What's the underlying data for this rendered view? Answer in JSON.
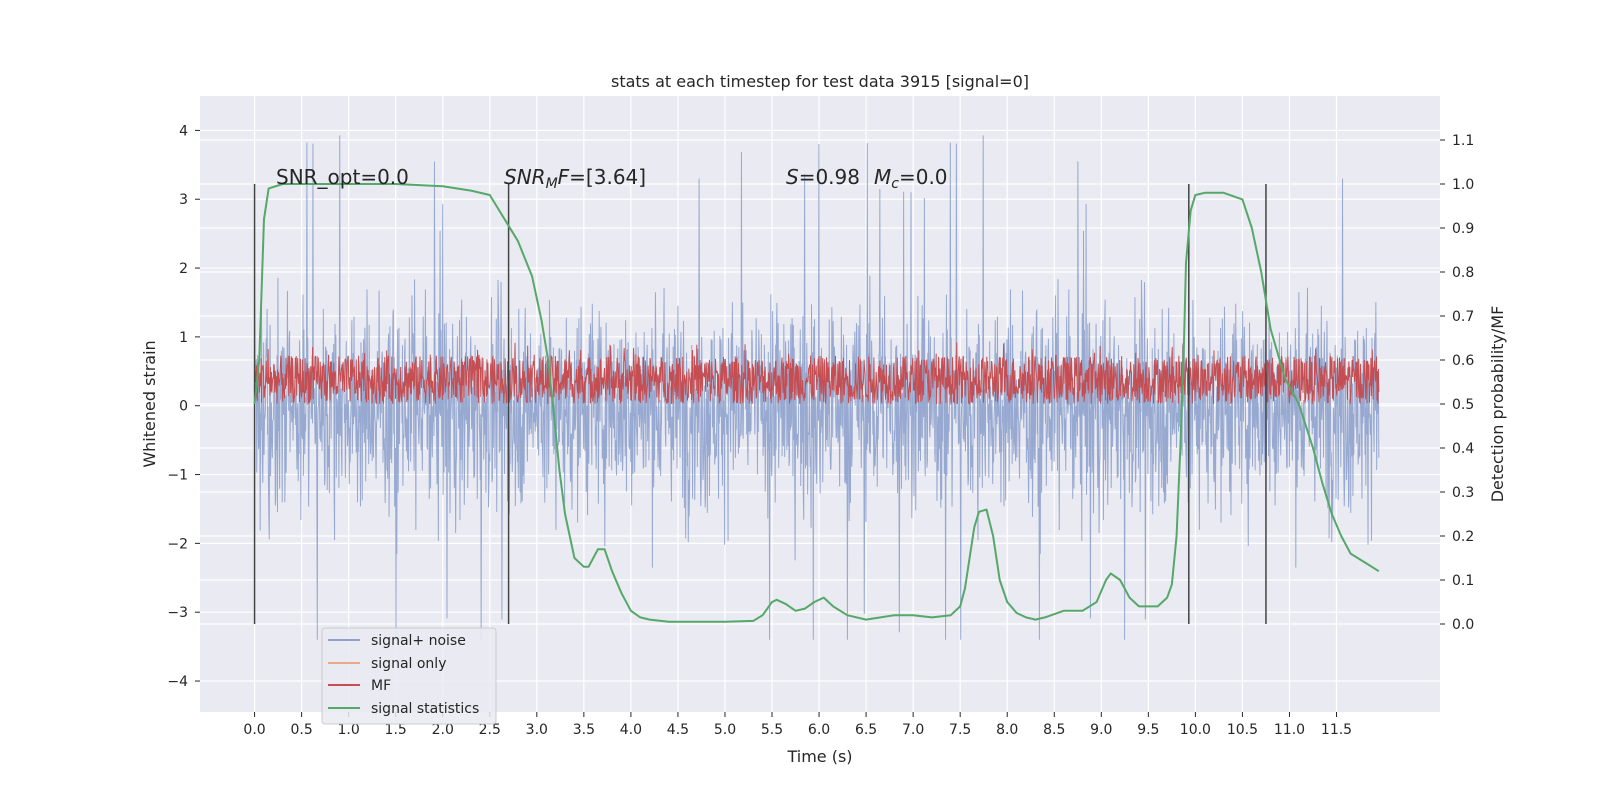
{
  "chart_data": {
    "type": "line",
    "title": "stats at each timestep for test data 3915 [signal=0]",
    "xlabel": "Time (s)",
    "ylabel_left": "Whitened strain",
    "ylabel_right": "Detection probability/MF",
    "xlim": [
      -0.58,
      12.6
    ],
    "ylim_left": [
      -4.45,
      4.5
    ],
    "ylim_right": [
      -0.2,
      1.2
    ],
    "x_ticks": [
      "0.0",
      "0.5",
      "1.0",
      "1.5",
      "2.0",
      "2.5",
      "3.0",
      "3.5",
      "4.0",
      "4.5",
      "5.0",
      "5.5",
      "6.0",
      "6.5",
      "7.0",
      "7.5",
      "8.0",
      "8.5",
      "9.0",
      "9.5",
      "10.0",
      "10.5",
      "11.0",
      "11.5"
    ],
    "y_ticks_left": [
      "4",
      "3",
      "2",
      "1",
      "0",
      "−1",
      "−2",
      "−3",
      "−4"
    ],
    "y_ticks_right": [
      "1.1",
      "1.0",
      "0.9",
      "0.8",
      "0.7",
      "0.6",
      "0.5",
      "0.4",
      "0.3",
      "0.2",
      "0.1",
      "0.0"
    ],
    "grid": true,
    "legend_position": "lower-left",
    "annotations": [
      {
        "kind": "snr_opt",
        "text": "SNR_opt=0.0"
      },
      {
        "kind": "snr_mf",
        "italic": "SNR",
        "sub": "M",
        "italic2": "F",
        "text": "=[3.64]"
      },
      {
        "kind": "stats",
        "italic": "S",
        "text": "=0.98",
        "italic2": "M",
        "sub": "c",
        "text2": "=0.0"
      }
    ],
    "vertical_markers_x": [
      0.0,
      2.7,
      9.93,
      10.75
    ],
    "series": [
      {
        "name": "signal+ noise",
        "color": "#8ea2cc",
        "axis": "left",
        "kind": "noise",
        "range": [
          -3.4,
          4.1
        ],
        "values_range_typical": [
          -2.5,
          2.5
        ]
      },
      {
        "name": "signal only",
        "color": "#e8a88a",
        "axis": "left",
        "values": []
      },
      {
        "name": "MF",
        "color": "#c44e52",
        "axis": "right",
        "kind": "band",
        "range_typical": [
          0.5,
          0.61
        ]
      },
      {
        "name": "signal statistics",
        "color": "#55a868",
        "axis": "right",
        "x": [
          0.0,
          0.05,
          0.1,
          0.15,
          0.3,
          0.6,
          1.0,
          1.5,
          2.0,
          2.3,
          2.5,
          2.6,
          2.8,
          2.95,
          3.05,
          3.12,
          3.18,
          3.24,
          3.3,
          3.4,
          3.5,
          3.55,
          3.65,
          3.72,
          3.8,
          3.9,
          4.0,
          4.1,
          4.2,
          4.4,
          4.6,
          5.0,
          5.3,
          5.4,
          5.5,
          5.55,
          5.65,
          5.75,
          5.85,
          5.95,
          6.05,
          6.15,
          6.3,
          6.5,
          6.8,
          7.0,
          7.2,
          7.4,
          7.5,
          7.55,
          7.6,
          7.65,
          7.7,
          7.78,
          7.85,
          7.92,
          8.0,
          8.1,
          8.2,
          8.3,
          8.4,
          8.6,
          8.8,
          8.95,
          9.05,
          9.1,
          9.2,
          9.3,
          9.4,
          9.6,
          9.7,
          9.75,
          9.8,
          9.84,
          9.88,
          9.9,
          9.95,
          10.0,
          10.1,
          10.3,
          10.5,
          10.6,
          10.7,
          10.8,
          10.95,
          11.1,
          11.25,
          11.35,
          11.45,
          11.55,
          11.65,
          11.8,
          11.95
        ],
        "values": [
          0.5,
          0.6,
          0.92,
          0.99,
          1.0,
          1.0,
          1.0,
          1.0,
          0.995,
          0.985,
          0.975,
          0.94,
          0.87,
          0.79,
          0.69,
          0.6,
          0.48,
          0.35,
          0.25,
          0.15,
          0.13,
          0.13,
          0.17,
          0.17,
          0.12,
          0.07,
          0.03,
          0.015,
          0.01,
          0.005,
          0.005,
          0.005,
          0.007,
          0.02,
          0.05,
          0.055,
          0.045,
          0.03,
          0.035,
          0.05,
          0.06,
          0.04,
          0.02,
          0.01,
          0.02,
          0.02,
          0.015,
          0.02,
          0.04,
          0.08,
          0.15,
          0.22,
          0.255,
          0.26,
          0.2,
          0.1,
          0.05,
          0.025,
          0.015,
          0.01,
          0.015,
          0.03,
          0.03,
          0.05,
          0.1,
          0.115,
          0.1,
          0.06,
          0.04,
          0.04,
          0.06,
          0.09,
          0.2,
          0.4,
          0.65,
          0.82,
          0.94,
          0.975,
          0.98,
          0.98,
          0.965,
          0.9,
          0.8,
          0.67,
          0.56,
          0.5,
          0.4,
          0.32,
          0.25,
          0.2,
          0.16,
          0.14,
          0.12
        ]
      }
    ]
  }
}
